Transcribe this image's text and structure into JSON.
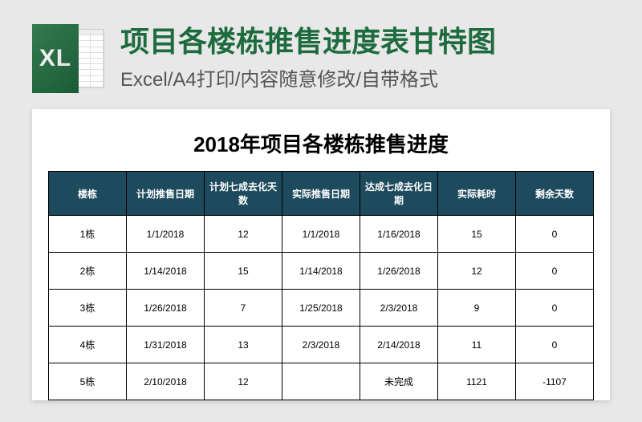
{
  "header": {
    "icon_label": "XL",
    "title": "项目各楼栋推售进度表甘特图",
    "subtitle": "Excel/A4打印/内容随意修改/自带格式"
  },
  "document": {
    "title": "2018年项目各楼栋推售进度",
    "columns": [
      "楼栋",
      "计划推售日期",
      "计划七成去化天数",
      "实际推售日期",
      "达成七成去化日期",
      "实际耗时",
      "剩余天数"
    ],
    "rows": [
      [
        "1栋",
        "1/1/2018",
        "12",
        "1/1/2018",
        "1/16/2018",
        "15",
        "0"
      ],
      [
        "2栋",
        "1/14/2018",
        "15",
        "1/14/2018",
        "1/26/2018",
        "12",
        "0"
      ],
      [
        "3栋",
        "1/26/2018",
        "7",
        "1/25/2018",
        "2/3/2018",
        "9",
        "0"
      ],
      [
        "4栋",
        "1/31/2018",
        "13",
        "2/3/2018",
        "2/14/2018",
        "11",
        "0"
      ],
      [
        "5栋",
        "2/10/2018",
        "12",
        "",
        "未完成",
        "1121",
        "-1107"
      ]
    ]
  },
  "colors": {
    "brand_green": "#1e6b3f",
    "header_bg": "#1d4a5c",
    "page_bg": "#e8e8e8"
  }
}
